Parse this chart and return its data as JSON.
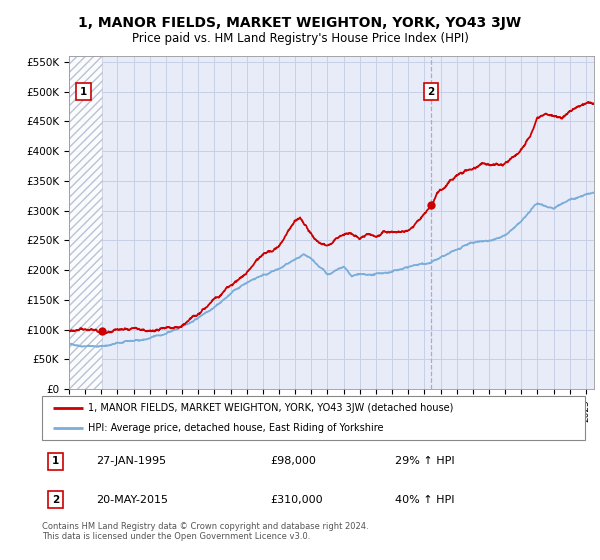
{
  "title": "1, MANOR FIELDS, MARKET WEIGHTON, YORK, YO43 3JW",
  "subtitle": "Price paid vs. HM Land Registry's House Price Index (HPI)",
  "legend_line1": "1, MANOR FIELDS, MARKET WEIGHTON, YORK, YO43 3JW (detached house)",
  "legend_line2": "HPI: Average price, detached house, East Riding of Yorkshire",
  "point1_date": "27-JAN-1995",
  "point1_price": 98000,
  "point1_label": "£98,000",
  "point1_hpi_pct": "29% ↑ HPI",
  "point2_date": "20-MAY-2015",
  "point2_price": 310000,
  "point2_label": "£310,000",
  "point2_hpi_pct": "40% ↑ HPI",
  "footer": "Contains HM Land Registry data © Crown copyright and database right 2024.\nThis data is licensed under the Open Government Licence v3.0.",
  "red_color": "#cc0000",
  "blue_color": "#7aadda",
  "grid_color": "#c8d0e8",
  "bg_color": "#e8ecf8",
  "ylim": [
    0,
    560000
  ],
  "xlim_start": 1993.0,
  "xlim_end": 2025.5,
  "sale1_year": 1995.07,
  "sale2_year": 2015.38,
  "yticks": [
    0,
    50000,
    100000,
    150000,
    200000,
    250000,
    300000,
    350000,
    400000,
    450000,
    500000,
    550000
  ],
  "ytick_labels": [
    "£0",
    "£50K",
    "£100K",
    "£150K",
    "£200K",
    "£250K",
    "£300K",
    "£350K",
    "£400K",
    "£450K",
    "£500K",
    "£550K"
  ],
  "xticks": [
    1993,
    1994,
    1995,
    1996,
    1997,
    1998,
    1999,
    2000,
    2001,
    2002,
    2003,
    2004,
    2005,
    2006,
    2007,
    2008,
    2009,
    2010,
    2011,
    2012,
    2013,
    2014,
    2015,
    2016,
    2017,
    2018,
    2019,
    2020,
    2021,
    2022,
    2023,
    2024,
    2025
  ],
  "hpi_years": [
    1993,
    1994,
    1995,
    1996,
    1997,
    1998,
    1999,
    2000,
    2001,
    2002,
    2003,
    2004,
    2005,
    2006,
    2007,
    2007.5,
    2008,
    2009,
    2009.5,
    2010,
    2010.5,
    2011,
    2011.5,
    2012,
    2012.5,
    2013,
    2014,
    2015,
    2016,
    2017,
    2018,
    2019,
    2020,
    2021,
    2022,
    2023,
    2024,
    2025.2
  ],
  "hpi_vals": [
    75000,
    76000,
    77000,
    82000,
    85000,
    90000,
    97000,
    108000,
    125000,
    148000,
    170000,
    190000,
    205000,
    215000,
    230000,
    235000,
    225000,
    200000,
    205000,
    210000,
    195000,
    198000,
    193000,
    195000,
    198000,
    200000,
    208000,
    215000,
    225000,
    235000,
    245000,
    252000,
    258000,
    280000,
    310000,
    305000,
    320000,
    330000
  ],
  "red_years": [
    1995.07,
    1996,
    1997,
    1998,
    1999,
    2000,
    2001,
    2002,
    2003,
    2004,
    2005,
    2006,
    2007,
    2007.3,
    2008,
    2008.5,
    2009,
    2009.5,
    2010,
    2010.5,
    2011,
    2011.5,
    2012,
    2012.5,
    2013,
    2013.5,
    2014,
    2014.8,
    2015.38,
    2016,
    2017,
    2018,
    2019,
    2020,
    2020.5,
    2021,
    2021.5,
    2022,
    2022.5,
    2023,
    2023.5,
    2024,
    2024.5,
    2025.2
  ],
  "red_vals": [
    98000,
    98000,
    99000,
    100000,
    105000,
    112000,
    125000,
    148000,
    172000,
    198000,
    230000,
    248000,
    295000,
    300000,
    270000,
    255000,
    250000,
    255000,
    260000,
    265000,
    255000,
    262000,
    258000,
    268000,
    270000,
    272000,
    275000,
    295000,
    310000,
    340000,
    360000,
    368000,
    375000,
    375000,
    385000,
    395000,
    415000,
    450000,
    455000,
    450000,
    445000,
    460000,
    470000,
    480000
  ]
}
